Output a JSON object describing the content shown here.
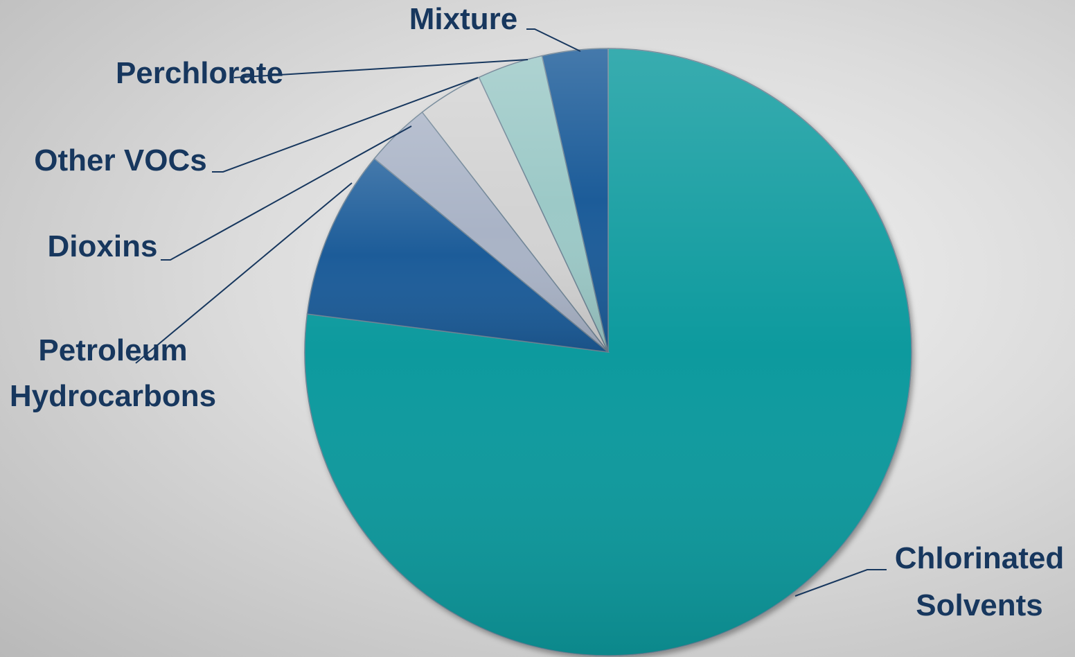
{
  "chart_data": {
    "type": "pie",
    "start_angle_deg": 0,
    "direction": "clockwise",
    "slices": [
      {
        "key": "chlorinated-solvents",
        "label_lines": [
          "Chlorinated",
          "Solvents"
        ],
        "value": 77,
        "color": "#0e9a9e"
      },
      {
        "key": "petroleum-hydrocarbons",
        "label_lines": [
          "Petroleum",
          "Hydrocarbons"
        ],
        "value": 9,
        "color": "#1f5c99"
      },
      {
        "key": "dioxins",
        "label_lines": [
          "Dioxins"
        ],
        "value": 3.5,
        "color": "#a9b3c6"
      },
      {
        "key": "other-vocs",
        "label_lines": [
          "Other VOCs"
        ],
        "value": 3.5,
        "color": "#d3d3d3"
      },
      {
        "key": "perchlorate",
        "label_lines": [
          "Perchlorate"
        ],
        "value": 3.5,
        "color": "#9cc9c7"
      },
      {
        "key": "mixture",
        "label_lines": [
          "Mixture"
        ],
        "value": 3.5,
        "color": "#1f5c99"
      }
    ]
  }
}
